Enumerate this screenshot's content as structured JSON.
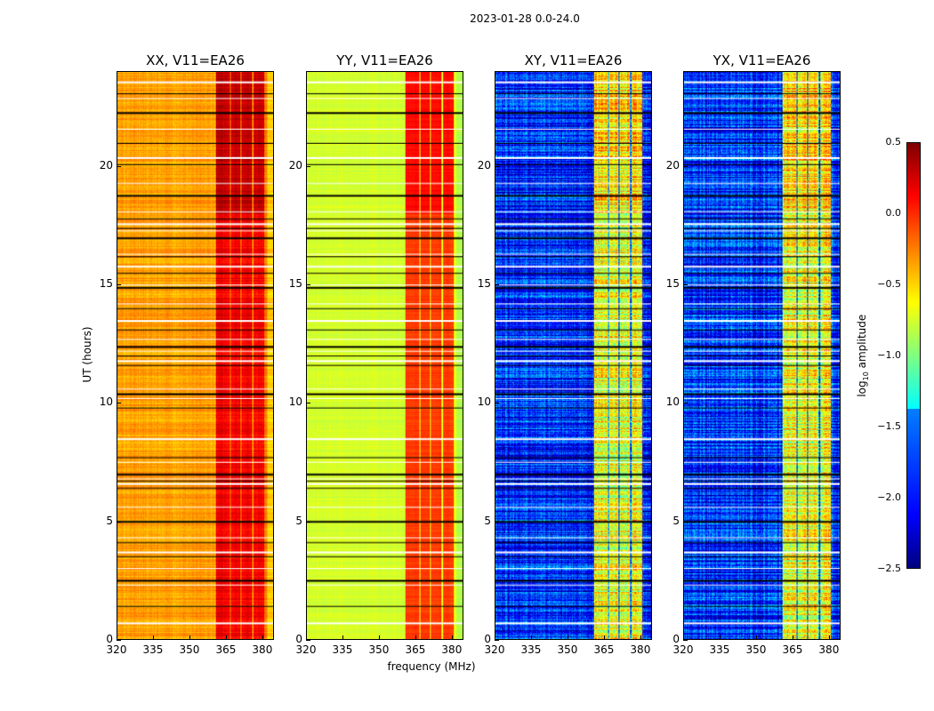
{
  "chart_data": {
    "type": "heatmap",
    "title": "2023-01-28 0.0-24.0",
    "xlabel": "frequency (MHz)",
    "ylabel": "UT (hours)",
    "xlim": [
      320,
      384.8
    ],
    "ylim": [
      0,
      24
    ],
    "xticks": [
      "320",
      "335",
      "350",
      "365",
      "380"
    ],
    "yticks": [
      "0",
      "5",
      "10",
      "15",
      "20"
    ],
    "colorbar": {
      "label_main": "log",
      "label_sub": "10",
      "label_rest": " amplitude",
      "colormap": "jet",
      "range": [
        -2.5,
        0.5
      ],
      "ticks": [
        "0.5",
        "0.0",
        "−0.5",
        "−1.0",
        "−1.5",
        "−2.0",
        "−2.5"
      ]
    },
    "band_columns_mhz": [
      [
        361,
        366.5
      ],
      [
        367.2,
        371
      ],
      [
        371.6,
        376
      ],
      [
        376.6,
        381
      ]
    ],
    "flagged_hours": [
      0.7,
      1.4,
      2.3,
      2.5,
      3.0,
      3.5,
      3.7,
      4.1,
      4.3,
      5.0,
      5.6,
      6.4,
      6.6,
      6.7,
      6.8,
      7.0,
      7.5,
      7.7,
      8.5,
      9.8,
      10.2,
      10.4,
      10.6,
      11.6,
      11.8,
      12.0,
      12.2,
      12.4,
      12.7,
      13.1,
      13.5,
      14.0,
      14.2,
      14.9,
      15.0,
      15.5,
      15.8,
      16.2,
      16.3,
      17.0,
      17.3,
      17.4,
      17.6,
      17.8,
      18.1,
      18.8,
      19.3,
      20.1,
      20.4,
      21.0,
      21.6,
      22.3,
      22.9,
      23.1,
      23.6
    ],
    "panels": [
      {
        "title": "XX, V11=EA26",
        "base_log_amp": -0.35,
        "band_log_amp": 0.15,
        "noise": 0.12
      },
      {
        "title": "YY, V11=EA26",
        "base_log_amp": -0.75,
        "band_log_amp": -0.05,
        "noise": 0.06
      },
      {
        "title": "XY, V11=EA26",
        "base_log_amp": -2.0,
        "band_log_amp": -0.7,
        "noise": 0.45
      },
      {
        "title": "YX, V11=EA26",
        "base_log_amp": -2.0,
        "band_log_amp": -0.7,
        "noise": 0.45
      }
    ]
  }
}
